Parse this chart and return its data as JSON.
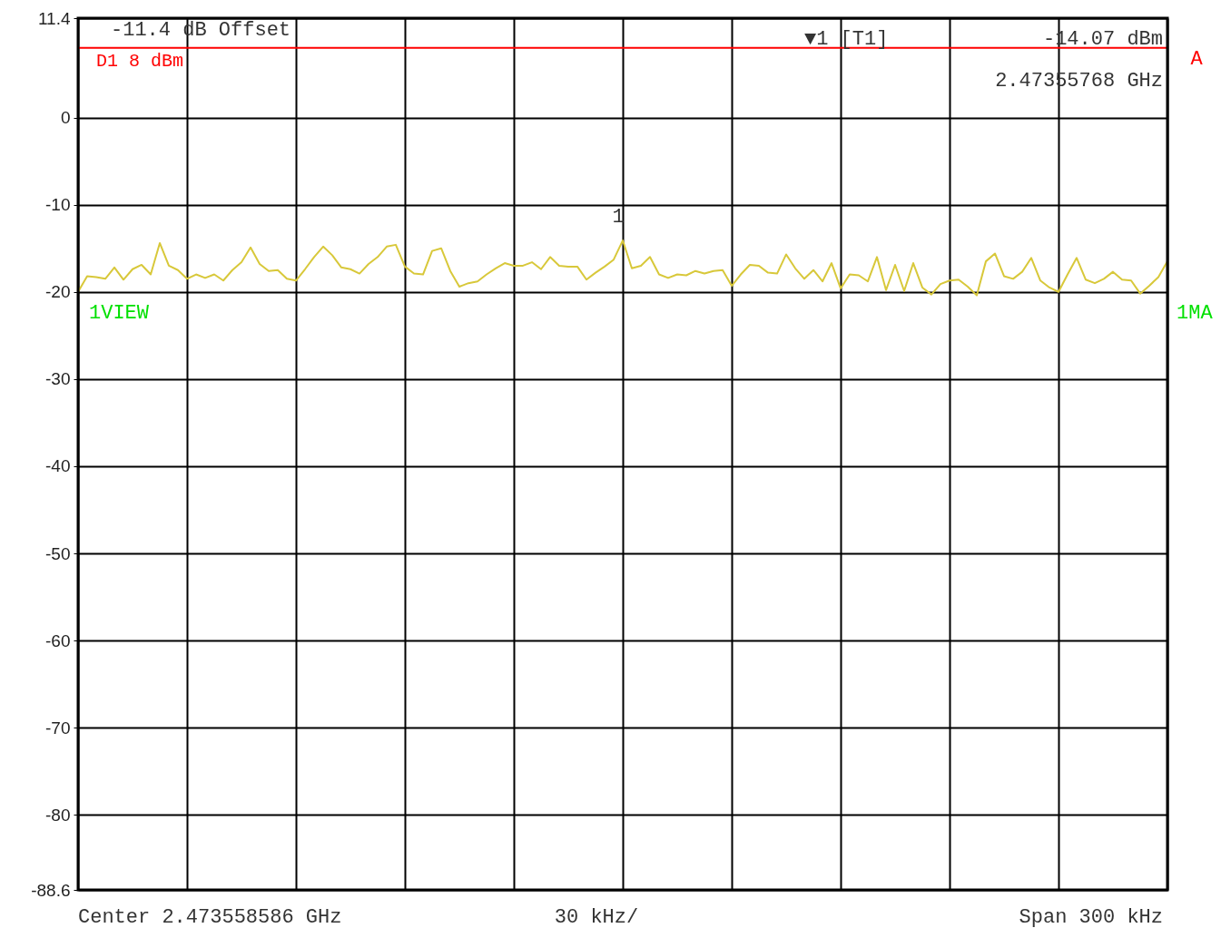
{
  "chart_data": {
    "type": "line",
    "categories": [
      null,
      null,
      null,
      null,
      null,
      null,
      null,
      null,
      null,
      null,
      null,
      null,
      null,
      null,
      null,
      null,
      null,
      null,
      null,
      null,
      null,
      null,
      null,
      null,
      null,
      null,
      null,
      null,
      null,
      null,
      null,
      null,
      null,
      null,
      null,
      null,
      null,
      null,
      null,
      null,
      null,
      null,
      null,
      null,
      null,
      null,
      null,
      null,
      null,
      null,
      null,
      null,
      null,
      null,
      null,
      null,
      null,
      null,
      null,
      null,
      null,
      null,
      null,
      null,
      null,
      null,
      null,
      null,
      null,
      null,
      null,
      null,
      null,
      null,
      null,
      null,
      null,
      null,
      null,
      null,
      null,
      null,
      null,
      null,
      null,
      null,
      null,
      null,
      null,
      null,
      null,
      null,
      null,
      null,
      null,
      null,
      null,
      null,
      null,
      null,
      null,
      null,
      null,
      null,
      null,
      null,
      null,
      null,
      null,
      null,
      null,
      null,
      null,
      null,
      null,
      null,
      null,
      null,
      null,
      null,
      null
    ],
    "ylim": [
      -88.6,
      11.4
    ],
    "yticks": [
      11.4,
      0,
      -10,
      -20,
      -30,
      -40,
      -50,
      -60,
      -70,
      -80,
      -88.6
    ],
    "tick_labels": "y",
    "grid": true,
    "marker": "none",
    "line_style": "solid",
    "series": [
      {
        "color": "#d8c83a",
        "values": [
          -20,
          -18.2,
          -18.3,
          -18.5,
          -17.2,
          -18.6,
          -17.4,
          -16.9,
          -18.0,
          -14.4,
          -17.0,
          -17.5,
          -18.5,
          -18.0,
          -18.4,
          -18.0,
          -18.7,
          -17.5,
          -16.6,
          -14.9,
          -16.8,
          -17.6,
          -17.5,
          -18.5,
          -18.7,
          -17.4,
          -16.0,
          -14.8,
          -15.8,
          -17.2,
          -17.4,
          -17.9,
          -16.8,
          -16.0,
          -14.8,
          -14.6,
          -17.1,
          -17.9,
          -18.0,
          -15.3,
          -15.0,
          -17.6,
          -19.4,
          -19.0,
          -18.8,
          -18.0,
          -17.3,
          -16.7,
          -17.0,
          -17.0,
          -16.6,
          -17.4,
          -16.0,
          -17.0,
          -17.1,
          -17.1,
          -18.6,
          -17.8,
          -17.1,
          -16.3,
          -14.1,
          -17.3,
          -17.0,
          -16.0,
          -18.0,
          -18.4,
          -18.0,
          -18.1,
          -17.6,
          -17.9,
          -17.6,
          -17.5,
          -19.3,
          -18.0,
          -16.9,
          -17.0,
          -17.8,
          -17.9,
          -15.7,
          -17.3,
          -18.5,
          -17.5,
          -18.8,
          -16.7,
          -19.6,
          -18.0,
          -18.1,
          -18.8,
          -16.0,
          -19.8,
          -16.9,
          -19.9,
          -16.7,
          -19.5,
          -20.3,
          -19.1,
          -18.7,
          -18.6,
          -19.4,
          -20.4,
          -16.5,
          -15.6,
          -18.2,
          -18.5,
          -17.7,
          -16.1,
          -18.7,
          -19.5,
          -20.0,
          -18.0,
          -16.1,
          -18.6,
          -19.0,
          -18.5,
          -17.7,
          -18.6,
          -18.7,
          -20.2,
          -19.3,
          -18.3,
          -16.5
        ]
      }
    ],
    "ref_lines": [
      {
        "axis": "y",
        "value": 8,
        "label": "D1 8 dBm",
        "color": "#ff0000",
        "line_style": "solid"
      }
    ],
    "annotations": [
      "-11.4 dB Offset",
      "▼1 [T1]",
      "-14.07 dBm",
      "2.47355768 GHz",
      "A",
      "1VIEW",
      "1MA",
      "Center 2.473558586 GHz",
      "30 kHz/",
      "Span 300 kHz",
      "1"
    ]
  }
}
